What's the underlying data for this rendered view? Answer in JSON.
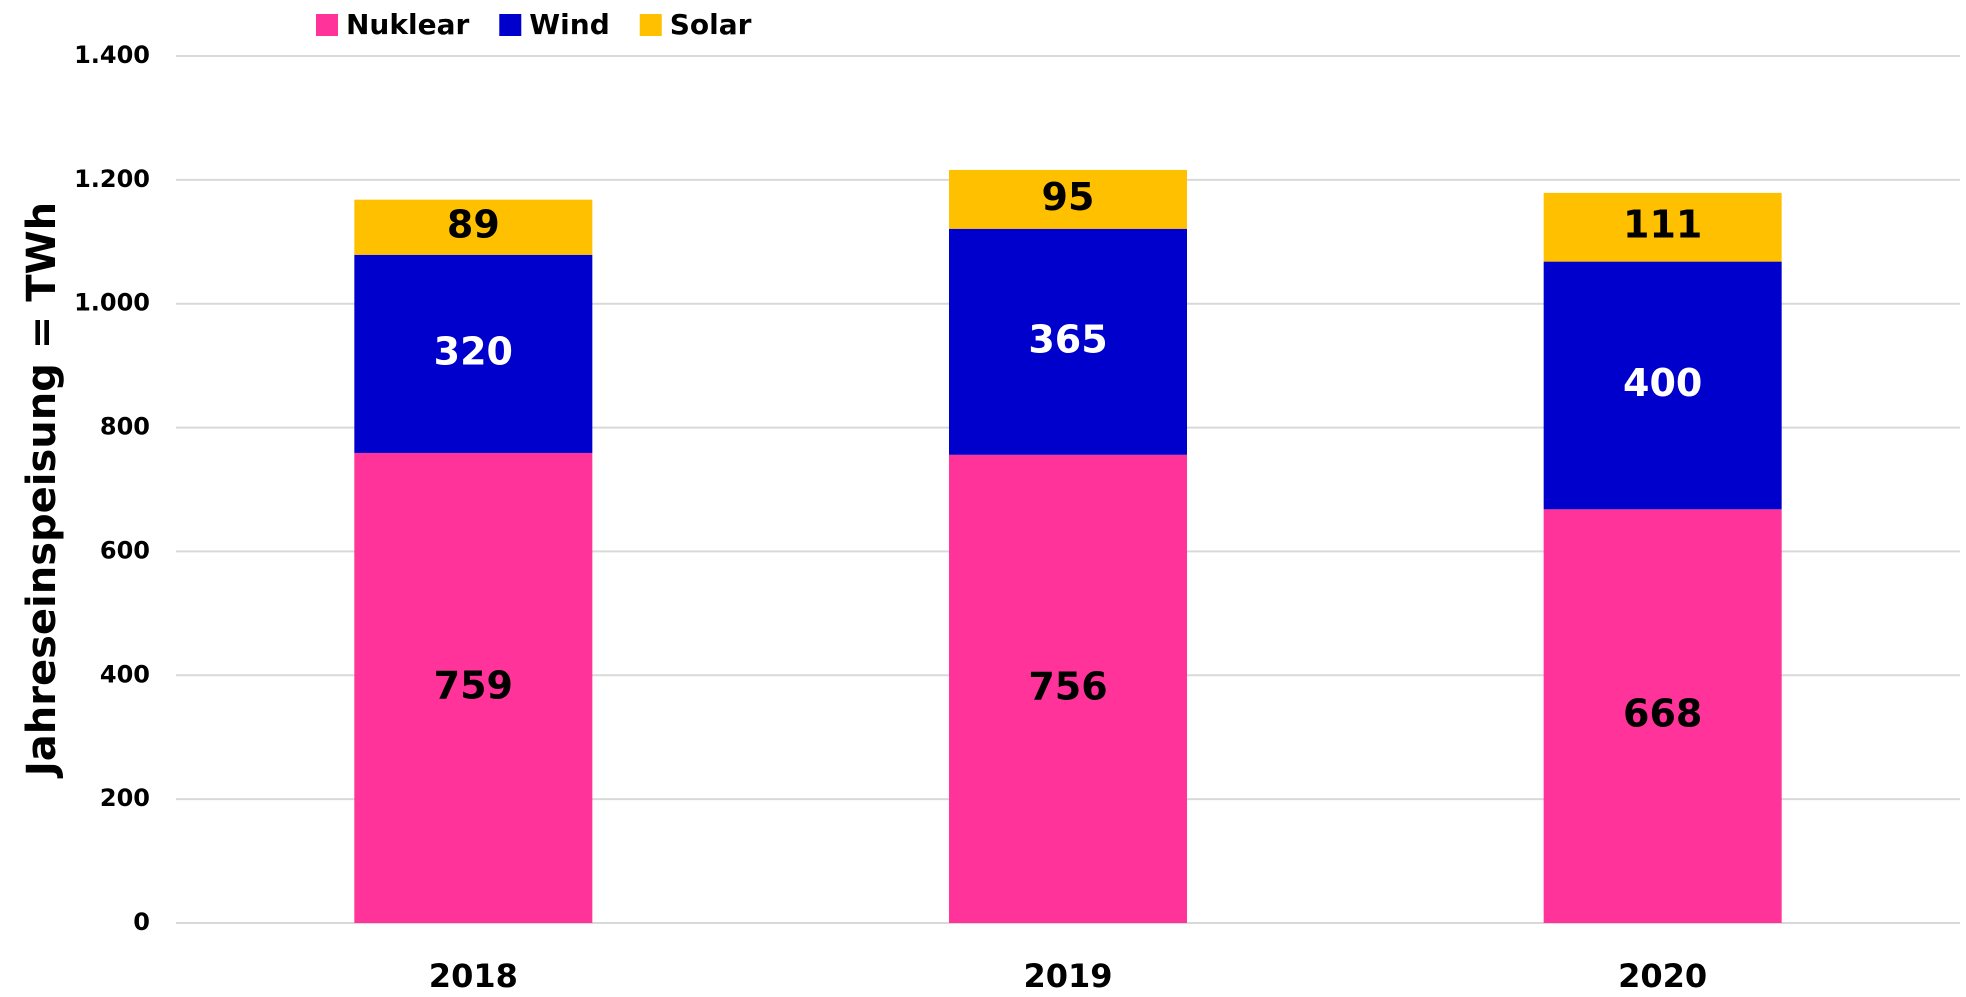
{
  "chart_data": {
    "type": "stacked_bar",
    "y_label": "Jahreseinspeisung = TWh",
    "categories": [
      "2018",
      "2019",
      "2020"
    ],
    "series": [
      {
        "name": "Nuklear",
        "color": "#ff3399",
        "label_color": "#000000",
        "values": [
          759,
          756,
          668
        ]
      },
      {
        "name": "Wind",
        "color": "#0000cc",
        "label_color": "#ffffff",
        "values": [
          320,
          365,
          400
        ]
      },
      {
        "name": "Solar",
        "color": "#ffc000",
        "label_color": "#000000",
        "values": [
          89,
          95,
          111
        ]
      }
    ],
    "ylim": [
      0,
      1400
    ],
    "yticks": [
      0,
      200,
      400,
      600,
      800,
      {
        "value": 1000,
        "label": "1.000"
      },
      {
        "value": 1200,
        "label": "1.200"
      },
      {
        "value": 1400,
        "label": "1.400"
      }
    ],
    "grid": true,
    "legend": "top"
  }
}
